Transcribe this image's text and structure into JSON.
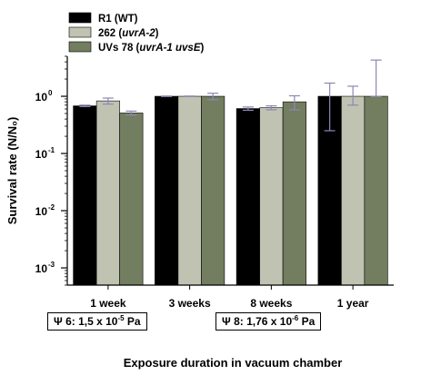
{
  "chart_data": {
    "type": "bar",
    "title": "",
    "xlabel": "Exposure duration in vacuum chamber",
    "ylabel": "Survival rate (N/N₀)",
    "yscale": "log",
    "ylim": [
      0.0005,
      5
    ],
    "y_ticks": [
      {
        "value": 0.001,
        "label": "10",
        "exp": "-3"
      },
      {
        "value": 0.01,
        "label": "10",
        "exp": "-2"
      },
      {
        "value": 0.1,
        "label": "10",
        "exp": "-1"
      },
      {
        "value": 1,
        "label": "10",
        "exp": "0"
      }
    ],
    "categories": [
      "1 week",
      "3 weeks",
      "8 weeks",
      "1 year"
    ],
    "legend_position": "top-left",
    "series": [
      {
        "name_parts": [
          {
            "text": "R1 (WT)",
            "italic": false
          }
        ],
        "color": "#000000",
        "values": [
          0.68,
          1.0,
          0.61,
          1.0
        ],
        "err_low": [
          0.02,
          0.01,
          0.04,
          0.75
        ],
        "err_high": [
          0.02,
          0.01,
          0.04,
          0.7
        ]
      },
      {
        "name_parts": [
          {
            "text": "262 (",
            "italic": false
          },
          {
            "text": "uvrA-2",
            "italic": true
          },
          {
            "text": ")",
            "italic": false
          }
        ],
        "color": "#c1c3b2",
        "values": [
          0.83,
          1.0,
          0.63,
          1.0
        ],
        "err_low": [
          0.1,
          0.01,
          0.05,
          0.3
        ],
        "err_high": [
          0.1,
          0.01,
          0.05,
          0.5
        ]
      },
      {
        "name_parts": [
          {
            "text": "UVs 78 (",
            "italic": false
          },
          {
            "text": "uvrA-1 uvsE",
            "italic": true
          },
          {
            "text": ")",
            "italic": false
          }
        ],
        "color": "#737d5f",
        "values": [
          0.51,
          1.0,
          0.8,
          1.0
        ],
        "err_low": [
          0.04,
          0.13,
          0.22,
          0.0
        ],
        "err_high": [
          0.04,
          0.13,
          0.22,
          3.3
        ]
      }
    ],
    "conditions": [
      {
        "symbol": "Ψ",
        "label": "6: 1,5 x 10",
        "exp": "-5",
        "unit": " Pa"
      },
      {
        "symbol": "Ψ",
        "label": "8: 1,76 x 10",
        "exp": "-6",
        "unit": " Pa"
      }
    ],
    "colors": {
      "axis": "#000000",
      "error_bar": "#8b87b6"
    }
  }
}
